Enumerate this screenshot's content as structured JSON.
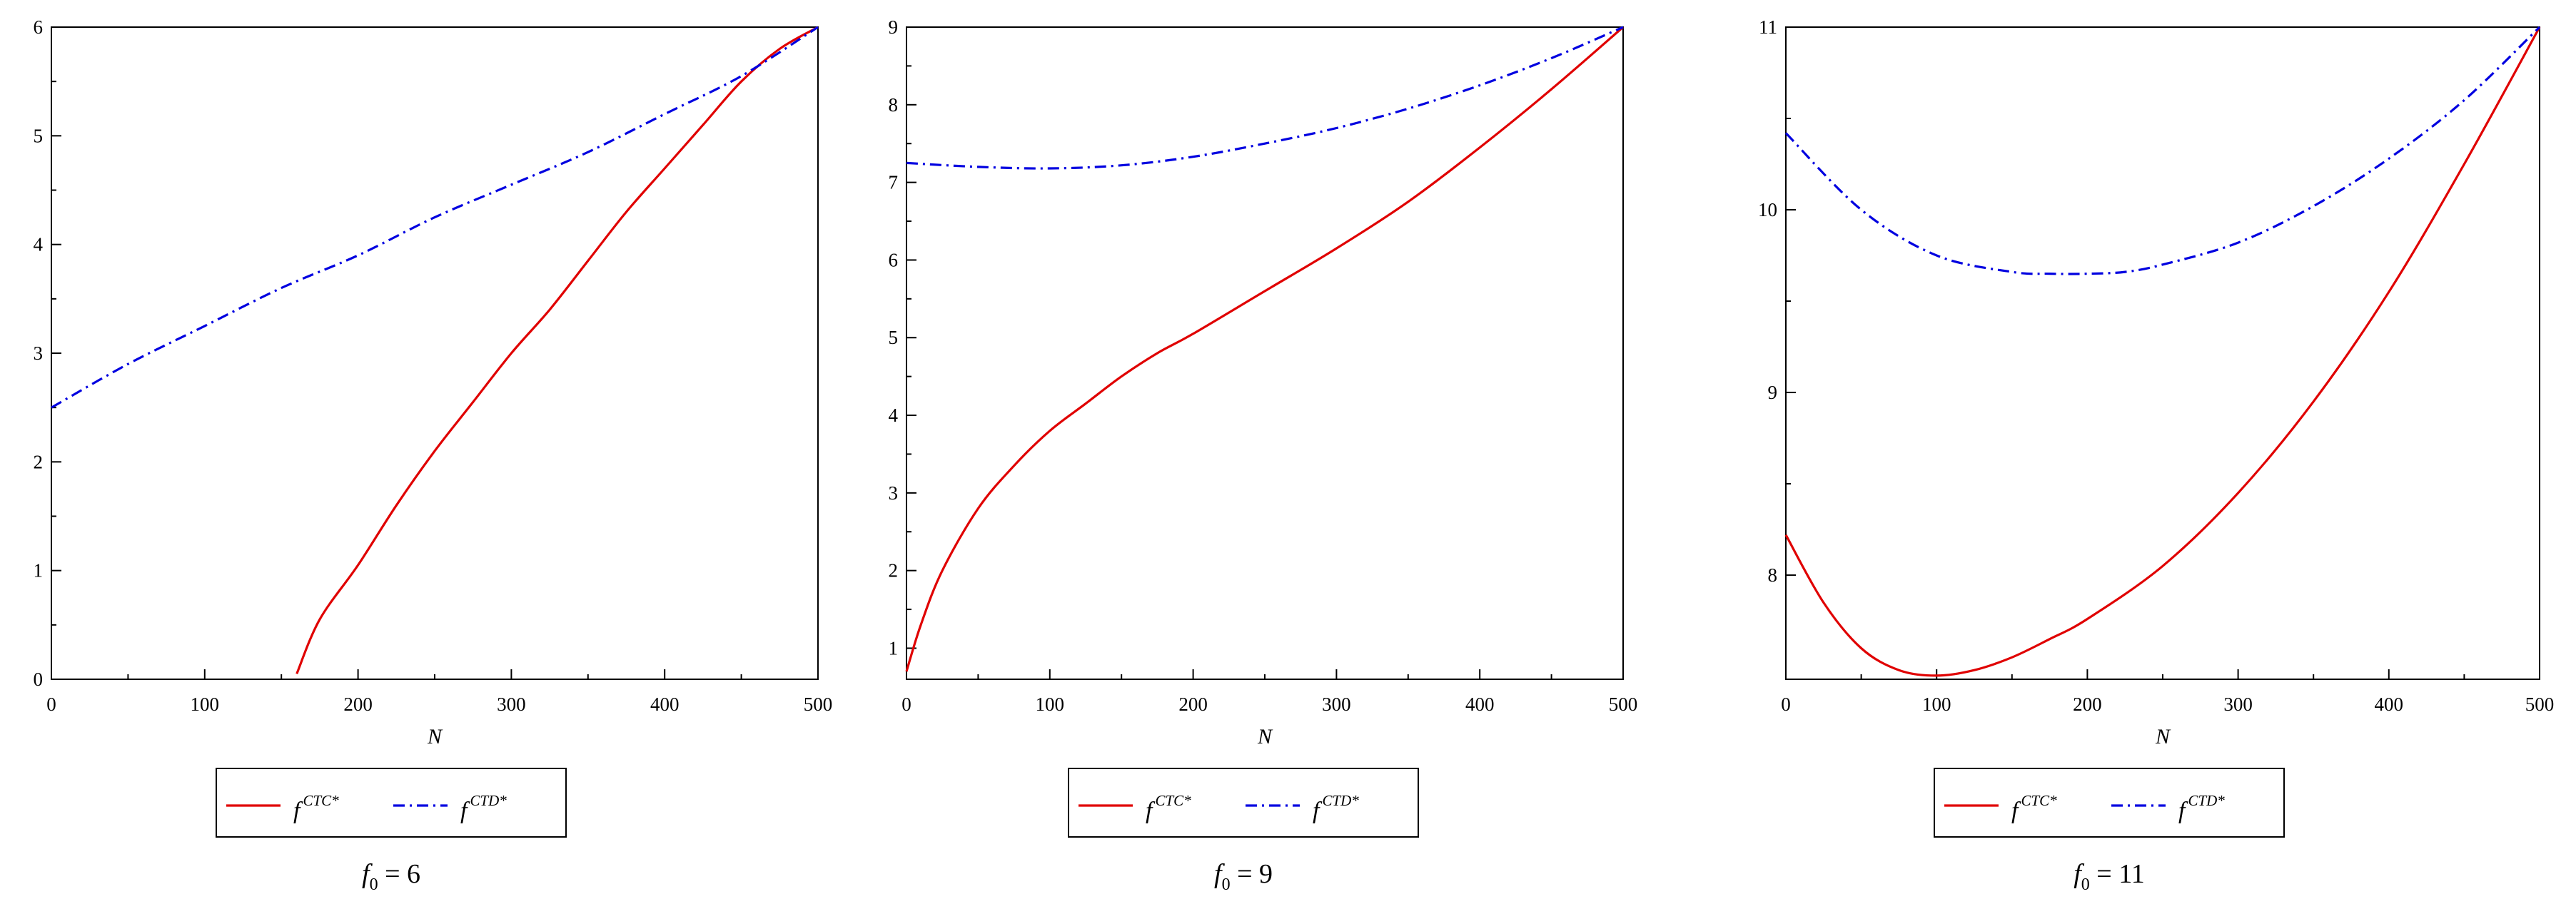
{
  "chart_data": [
    {
      "type": "line",
      "xlabel": "N",
      "xlim": [
        0,
        500
      ],
      "ylim": [
        0,
        6
      ],
      "xticks": [
        0,
        100,
        200,
        300,
        400,
        500
      ],
      "yticks": [
        0,
        1,
        2,
        3,
        4,
        5,
        6
      ],
      "grid": false,
      "legend_placement": "below",
      "caption": {
        "var": "f",
        "sub": "0",
        "rest": " = 6"
      },
      "series": [
        {
          "name": "CTC*",
          "legend_base": "f",
          "legend_sup": "CTC*",
          "color": "#e00000",
          "style": "solid",
          "x": [
            160,
            175,
            200,
            225,
            250,
            275,
            300,
            325,
            350,
            375,
            400,
            425,
            450,
            475,
            500
          ],
          "y": [
            0.05,
            0.55,
            1.05,
            1.6,
            2.1,
            2.55,
            3.0,
            3.4,
            3.85,
            4.3,
            4.7,
            5.1,
            5.5,
            5.8,
            6.0
          ]
        },
        {
          "name": "CTD*",
          "legend_base": "f",
          "legend_sup": "CTD*",
          "color": "#0000e0",
          "style": "dash-dot",
          "x": [
            0,
            50,
            100,
            150,
            200,
            250,
            300,
            350,
            400,
            450,
            500
          ],
          "y": [
            2.5,
            2.9,
            3.25,
            3.6,
            3.9,
            4.25,
            4.55,
            4.85,
            5.2,
            5.55,
            6.0
          ]
        }
      ]
    },
    {
      "type": "line",
      "xlabel": "N",
      "xlim": [
        0,
        500
      ],
      "ylim": [
        0.6,
        9
      ],
      "xticks": [
        0,
        100,
        200,
        300,
        400,
        500
      ],
      "yticks": [
        1,
        2,
        3,
        4,
        5,
        6,
        7,
        8,
        9
      ],
      "grid": false,
      "legend_placement": "below",
      "caption": {
        "var": "f",
        "sub": "0",
        "rest": " = 9"
      },
      "series": [
        {
          "name": "CTC*",
          "legend_base": "f",
          "legend_sup": "CTC*",
          "color": "#e00000",
          "style": "solid",
          "x": [
            0,
            10,
            25,
            50,
            75,
            100,
            125,
            150,
            175,
            200,
            250,
            300,
            350,
            400,
            450,
            500
          ],
          "y": [
            0.7,
            1.3,
            2.0,
            2.8,
            3.35,
            3.8,
            4.15,
            4.5,
            4.8,
            5.05,
            5.6,
            6.15,
            6.75,
            7.45,
            8.2,
            9.0
          ]
        },
        {
          "name": "CTD*",
          "legend_base": "f",
          "legend_sup": "CTD*",
          "color": "#0000e0",
          "style": "dash-dot",
          "x": [
            0,
            50,
            100,
            150,
            200,
            250,
            300,
            350,
            400,
            450,
            500
          ],
          "y": [
            7.25,
            7.2,
            7.18,
            7.22,
            7.33,
            7.5,
            7.7,
            7.95,
            8.25,
            8.6,
            9.0
          ]
        }
      ]
    },
    {
      "type": "line",
      "xlabel": "N",
      "xlim": [
        0,
        500
      ],
      "ylim": [
        7.43,
        11
      ],
      "xticks": [
        0,
        100,
        200,
        300,
        400,
        500
      ],
      "yticks": [
        8,
        9,
        10,
        11
      ],
      "grid": false,
      "legend_placement": "below",
      "caption": {
        "var": "f",
        "sub": "0",
        "rest": " = 11"
      },
      "series": [
        {
          "name": "CTC*",
          "legend_base": "f",
          "legend_sup": "CTC*",
          "color": "#e00000",
          "style": "solid",
          "x": [
            0,
            25,
            50,
            75,
            100,
            125,
            150,
            175,
            200,
            250,
            300,
            350,
            400,
            450,
            500
          ],
          "y": [
            8.22,
            7.85,
            7.6,
            7.48,
            7.45,
            7.48,
            7.55,
            7.65,
            7.76,
            8.05,
            8.45,
            8.95,
            9.55,
            10.25,
            11.0
          ]
        },
        {
          "name": "CTD*",
          "legend_base": "f",
          "legend_sup": "CTD*",
          "color": "#0000e0",
          "style": "dash-dot",
          "x": [
            0,
            50,
            100,
            150,
            175,
            200,
            225,
            250,
            300,
            350,
            400,
            450,
            500
          ],
          "y": [
            10.42,
            10.0,
            9.75,
            9.66,
            9.65,
            9.65,
            9.66,
            9.7,
            9.82,
            10.02,
            10.28,
            10.6,
            11.0
          ]
        }
      ]
    }
  ]
}
